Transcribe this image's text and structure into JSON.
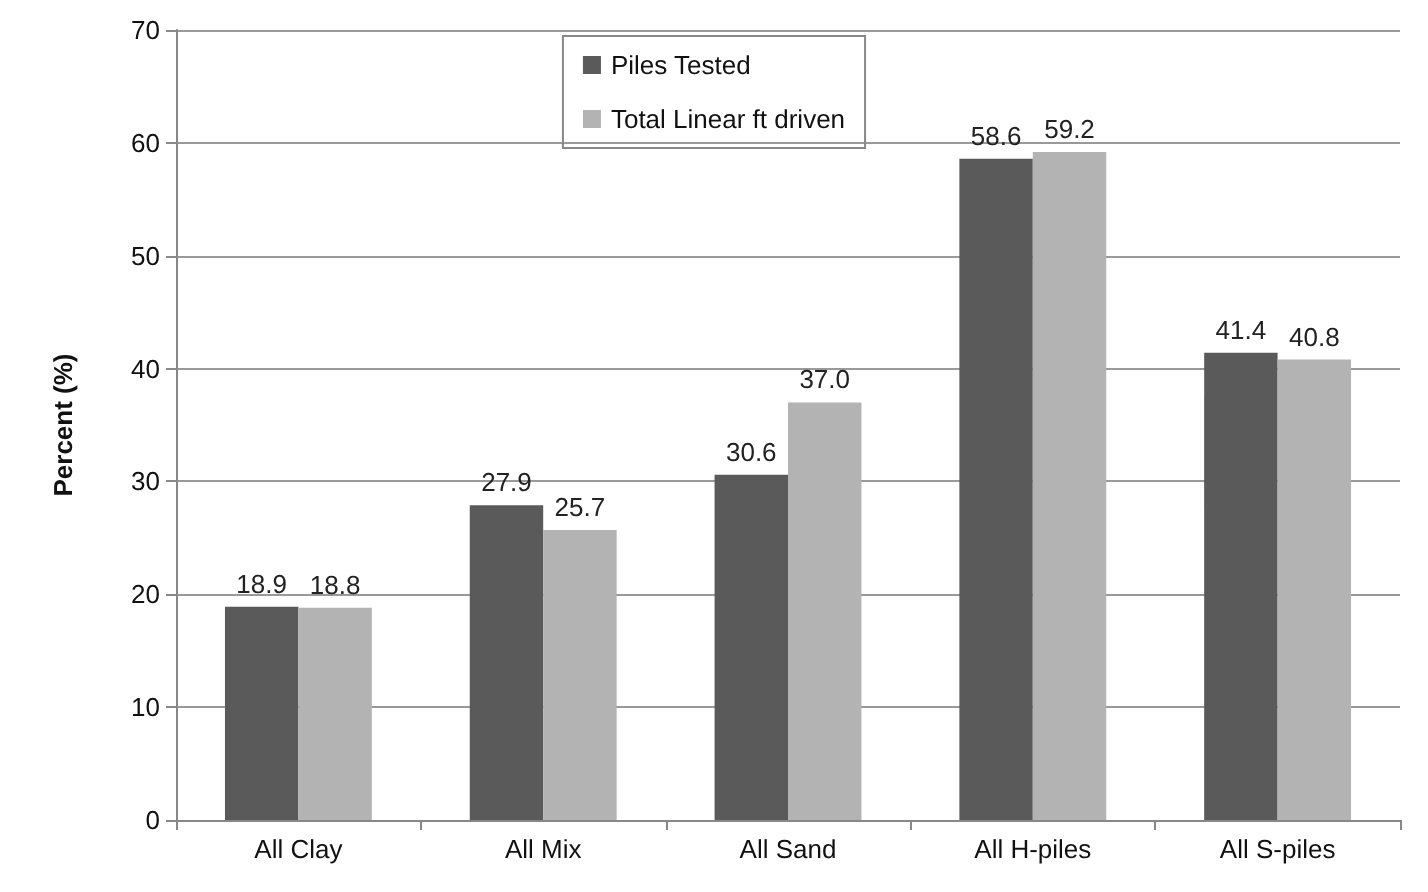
{
  "chart_data": {
    "type": "bar",
    "ylabel": "Percent (%)",
    "categories": [
      "All Clay",
      "All Mix",
      "All Sand",
      "All H-piles",
      "All S-piles"
    ],
    "series": [
      {
        "name": "Piles Tested",
        "color": "#5a5a5a",
        "values": [
          18.9,
          27.9,
          30.6,
          58.6,
          41.4
        ],
        "value_labels": [
          "18.9",
          "27.9",
          "30.6",
          "58.6",
          "41.4"
        ]
      },
      {
        "name": "Total Linear ft driven",
        "color": "#b3b3b3",
        "values": [
          18.8,
          25.7,
          37.0,
          59.2,
          40.8
        ],
        "value_labels": [
          "18.8",
          "25.7",
          "37.0",
          "59.2",
          "40.8"
        ]
      }
    ],
    "ylim": [
      0,
      70
    ],
    "yticks": [
      0,
      10,
      20,
      30,
      40,
      50,
      60,
      70
    ],
    "grid": "y",
    "legend": "top"
  }
}
